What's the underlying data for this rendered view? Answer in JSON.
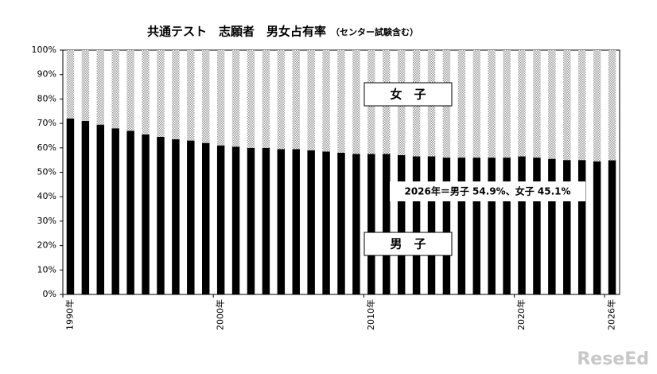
{
  "chart_data": {
    "type": "stacked_bar_100",
    "title": "共通テスト　志願者　男女占有率",
    "subtitle": "（センター試験含む）",
    "categories": [
      "1990年",
      null,
      null,
      null,
      null,
      null,
      null,
      null,
      null,
      null,
      "2000年",
      null,
      null,
      null,
      null,
      null,
      null,
      null,
      null,
      null,
      "2010年",
      null,
      null,
      null,
      null,
      null,
      null,
      null,
      null,
      null,
      "2020年",
      null,
      null,
      null,
      null,
      null,
      "2026年"
    ],
    "series": [
      {
        "name": "男　子",
        "color": "#000000",
        "values": [
          72,
          71,
          69.5,
          68,
          67,
          65.5,
          64.5,
          63.5,
          63,
          62,
          61,
          60.5,
          60,
          60,
          59.5,
          59.5,
          59,
          58.5,
          58,
          57.5,
          57.5,
          57.5,
          57,
          56.5,
          56.5,
          56,
          56,
          56,
          56,
          56,
          56.5,
          56,
          55.5,
          55,
          55,
          54.5,
          54.9
        ]
      },
      {
        "name": "女　子",
        "color": "#9a9a9a",
        "values": [
          28,
          29,
          30.5,
          32,
          33,
          34.5,
          35.5,
          36.5,
          37,
          38,
          39,
          39.5,
          40,
          40,
          40.5,
          40.5,
          41,
          41.5,
          42,
          42.5,
          42.5,
          42.5,
          43,
          43.5,
          43.5,
          44,
          44,
          44,
          44,
          44,
          43.5,
          44,
          44.5,
          45,
          45,
          45.5,
          45.1
        ]
      }
    ],
    "ylim": [
      0,
      100
    ],
    "yticks": [
      {
        "value": 0,
        "label": "0%"
      },
      {
        "value": 10,
        "label": "10%"
      },
      {
        "value": 20,
        "label": "20%"
      },
      {
        "value": 30,
        "label": "30%"
      },
      {
        "value": 40,
        "label": "40%"
      },
      {
        "value": 50,
        "label": "50%"
      },
      {
        "value": 60,
        "label": "60%"
      },
      {
        "value": 70,
        "label": "70%"
      },
      {
        "value": 80,
        "label": "80%"
      },
      {
        "value": 90,
        "label": "90%"
      },
      {
        "value": 100,
        "label": "100%"
      }
    ],
    "annotation": "2026年＝男子 54.9%、女子 45.1%",
    "watermark": "ReseEd",
    "grid": false
  }
}
